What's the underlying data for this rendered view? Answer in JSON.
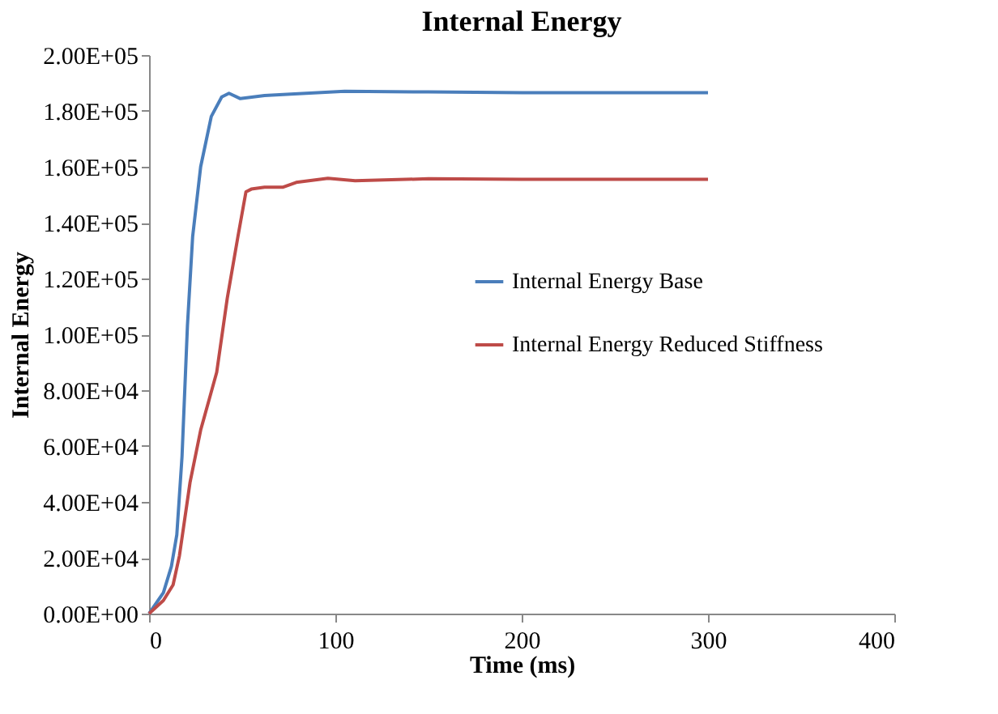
{
  "chart_data": {
    "type": "line",
    "title": "Internal Energy",
    "xlabel": "Time (ms)",
    "ylabel": "Internal Energy",
    "xlim": [
      0,
      400
    ],
    "xticks": [
      0,
      100,
      200,
      300,
      400
    ],
    "ylim": [
      0,
      200000
    ],
    "yticks": [
      {
        "value": 0,
        "label": "0.00E+00"
      },
      {
        "value": 20000,
        "label": "2.00E+04"
      },
      {
        "value": 40000,
        "label": "4.00E+04"
      },
      {
        "value": 60000,
        "label": "6.00E+04"
      },
      {
        "value": 80000,
        "label": "8.00E+04"
      },
      {
        "value": 100000,
        "label": "1.00E+05"
      },
      {
        "value": 120000,
        "label": "1.20E+05"
      },
      {
        "value": 140000,
        "label": "1.40E+05"
      },
      {
        "value": 160000,
        "label": "1.60E+05"
      },
      {
        "value": 180000,
        "label": "1.80E+05"
      },
      {
        "value": 200000,
        "label": "2.00E+05"
      }
    ],
    "grid": false,
    "legend": "right",
    "marker": "none",
    "line_style": "solid",
    "series": [
      {
        "name": "Internal Energy Base",
        "color": "#4a7ebb",
        "x": [
          0,
          7.7,
          12,
          14.9,
          17.7,
          20.6,
          23.4,
          27.7,
          33.4,
          39,
          42.9,
          49,
          62,
          76,
          105,
          150,
          200,
          250,
          300
        ],
        "values": [
          0,
          7500,
          16900,
          28200,
          56300,
          103000,
          135000,
          160000,
          178000,
          185000,
          186300,
          184400,
          185500,
          186000,
          187000,
          186800,
          186500,
          186500,
          186500
        ]
      },
      {
        "name": "Internal Energy Reduced Stiffness",
        "color": "#be4b48",
        "x": [
          0,
          7.7,
          12.9,
          16.3,
          22,
          27.7,
          36.3,
          42,
          47.7,
          52,
          54.9,
          62,
          72,
          79,
          96,
          110.6,
          150,
          200,
          250,
          300
        ],
        "values": [
          0,
          4700,
          10300,
          20700,
          47000,
          65700,
          86400,
          113000,
          135000,
          151000,
          152000,
          152700,
          152700,
          154400,
          155900,
          155000,
          155700,
          155500,
          155500,
          155500
        ]
      }
    ]
  }
}
